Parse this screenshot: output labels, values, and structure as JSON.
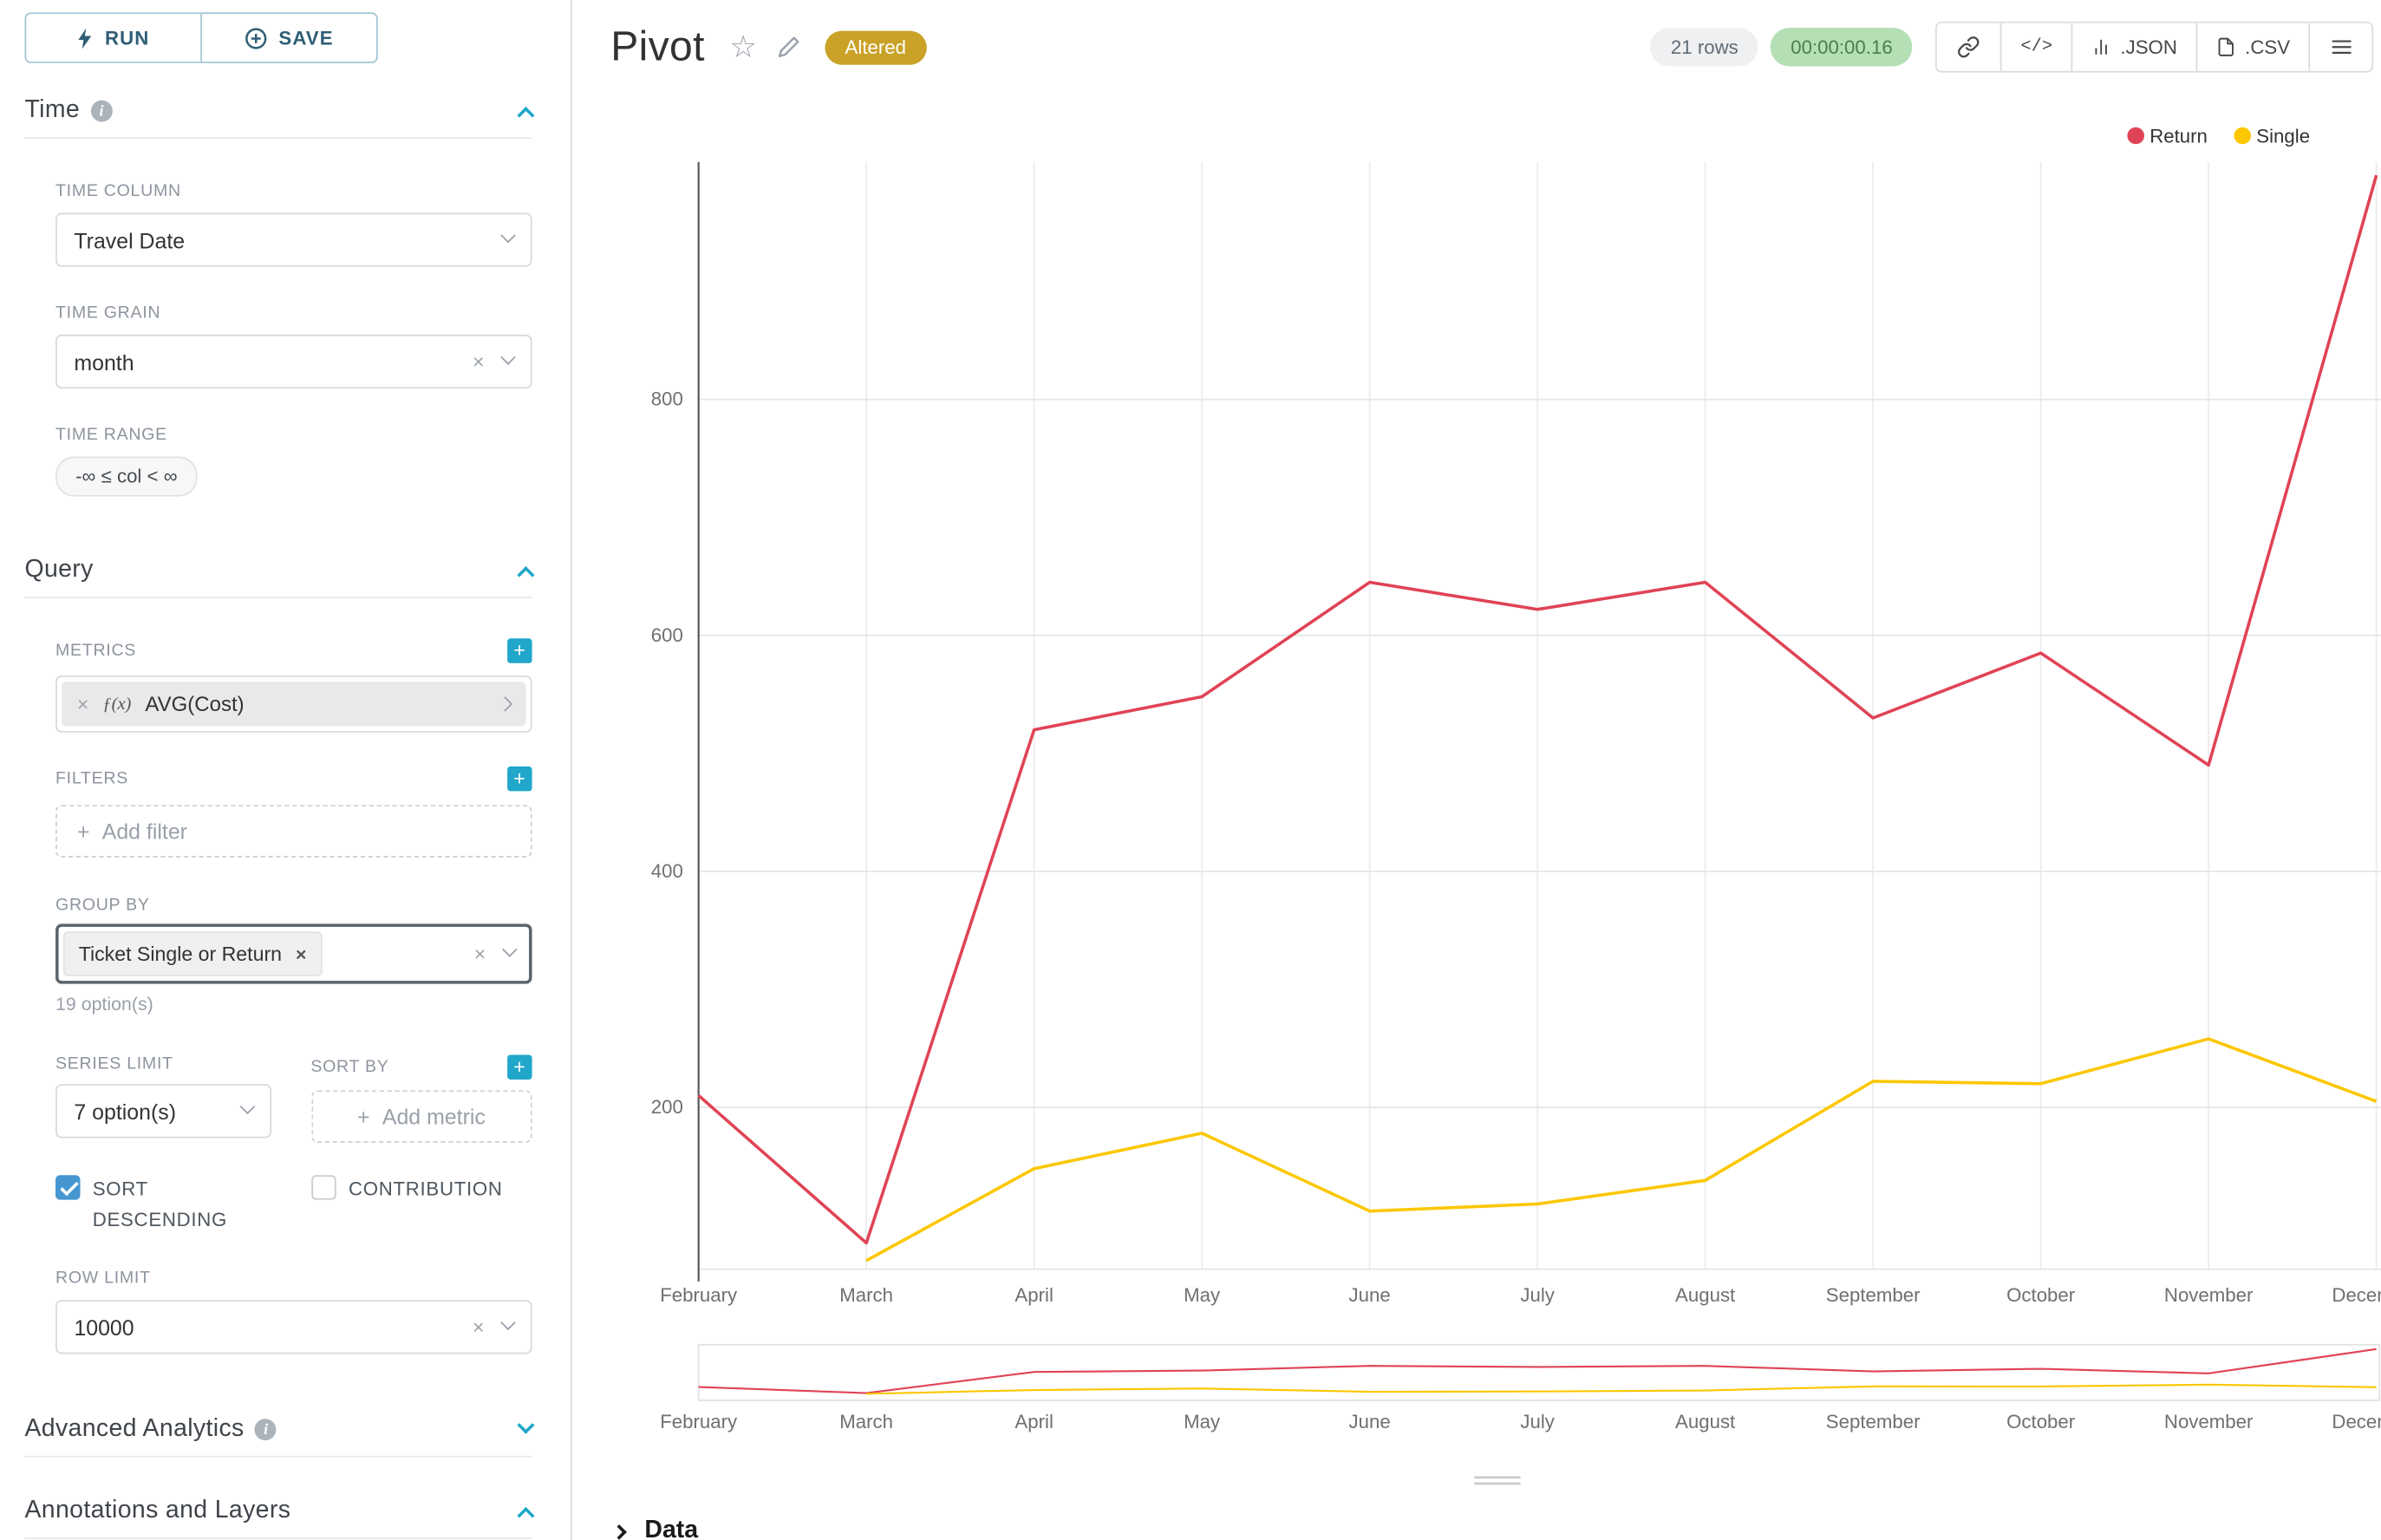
{
  "colors": {
    "accent": "#20A7C9",
    "return_line": "#E04355",
    "single_line": "#FCC700",
    "altered_badge": "#C9A227",
    "timer_badge_bg": "#B5DFB5"
  },
  "icons": {
    "plus": "+",
    "close": "×",
    "star": "☆",
    "code": "</>",
    "fx": "ƒ(x)",
    "info": "i"
  },
  "toolbar": {
    "run_label": "RUN",
    "save_label": "SAVE"
  },
  "panel": {
    "time": {
      "title": "Time",
      "time_column_label": "TIME COLUMN",
      "time_column_value": "Travel Date",
      "time_grain_label": "TIME GRAIN",
      "time_grain_value": "month",
      "time_range_label": "TIME RANGE",
      "time_range_value": "-∞ ≤ col < ∞"
    },
    "query": {
      "title": "Query",
      "metrics_label": "METRICS",
      "metric_value": "AVG(Cost)",
      "filters_label": "FILTERS",
      "add_filter_placeholder": "Add filter",
      "group_by_label": "GROUP BY",
      "group_by_tag": "Ticket Single or Return",
      "group_by_hint": "19 option(s)",
      "series_limit_label": "SERIES LIMIT",
      "series_limit_value": "7 option(s)",
      "sort_by_label": "SORT BY",
      "add_metric_placeholder": "Add metric",
      "sort_descending_label": "SORT DESCENDING",
      "sort_descending_checked": true,
      "contribution_label": "CONTRIBUTION",
      "contribution_checked": false,
      "row_limit_label": "ROW LIMIT",
      "row_limit_value": "10000"
    },
    "advanced_analytics_title": "Advanced Analytics",
    "annotations_title": "Annotations and Layers"
  },
  "header": {
    "title": "Pivot",
    "altered_badge": "Altered",
    "rows_badge": "21 rows",
    "timer_badge": "00:00:00.16",
    "json_button": ".JSON",
    "csv_button": ".CSV"
  },
  "footer": {
    "data_panel_title": "Data"
  },
  "chart_data": {
    "type": "line",
    "title": "Pivot",
    "categories": [
      "February",
      "March",
      "April",
      "May",
      "June",
      "July",
      "August",
      "September",
      "October",
      "November",
      "December"
    ],
    "series": [
      {
        "name": "Return",
        "color": "#E04355",
        "values": [
          210,
          85,
          520,
          548,
          645,
          622,
          645,
          530,
          585,
          490,
          990
        ]
      },
      {
        "name": "Single",
        "color": "#FCC700",
        "values": [
          null,
          70,
          148,
          178,
          112,
          118,
          138,
          222,
          220,
          258,
          205
        ]
      }
    ],
    "yticks": [
      200,
      400,
      600,
      800
    ],
    "ylim": [
      60,
      1010
    ],
    "xlabel": "",
    "ylabel": "",
    "grid": true,
    "legend_position": "top-right",
    "has_mini_zoom_chart": true
  }
}
